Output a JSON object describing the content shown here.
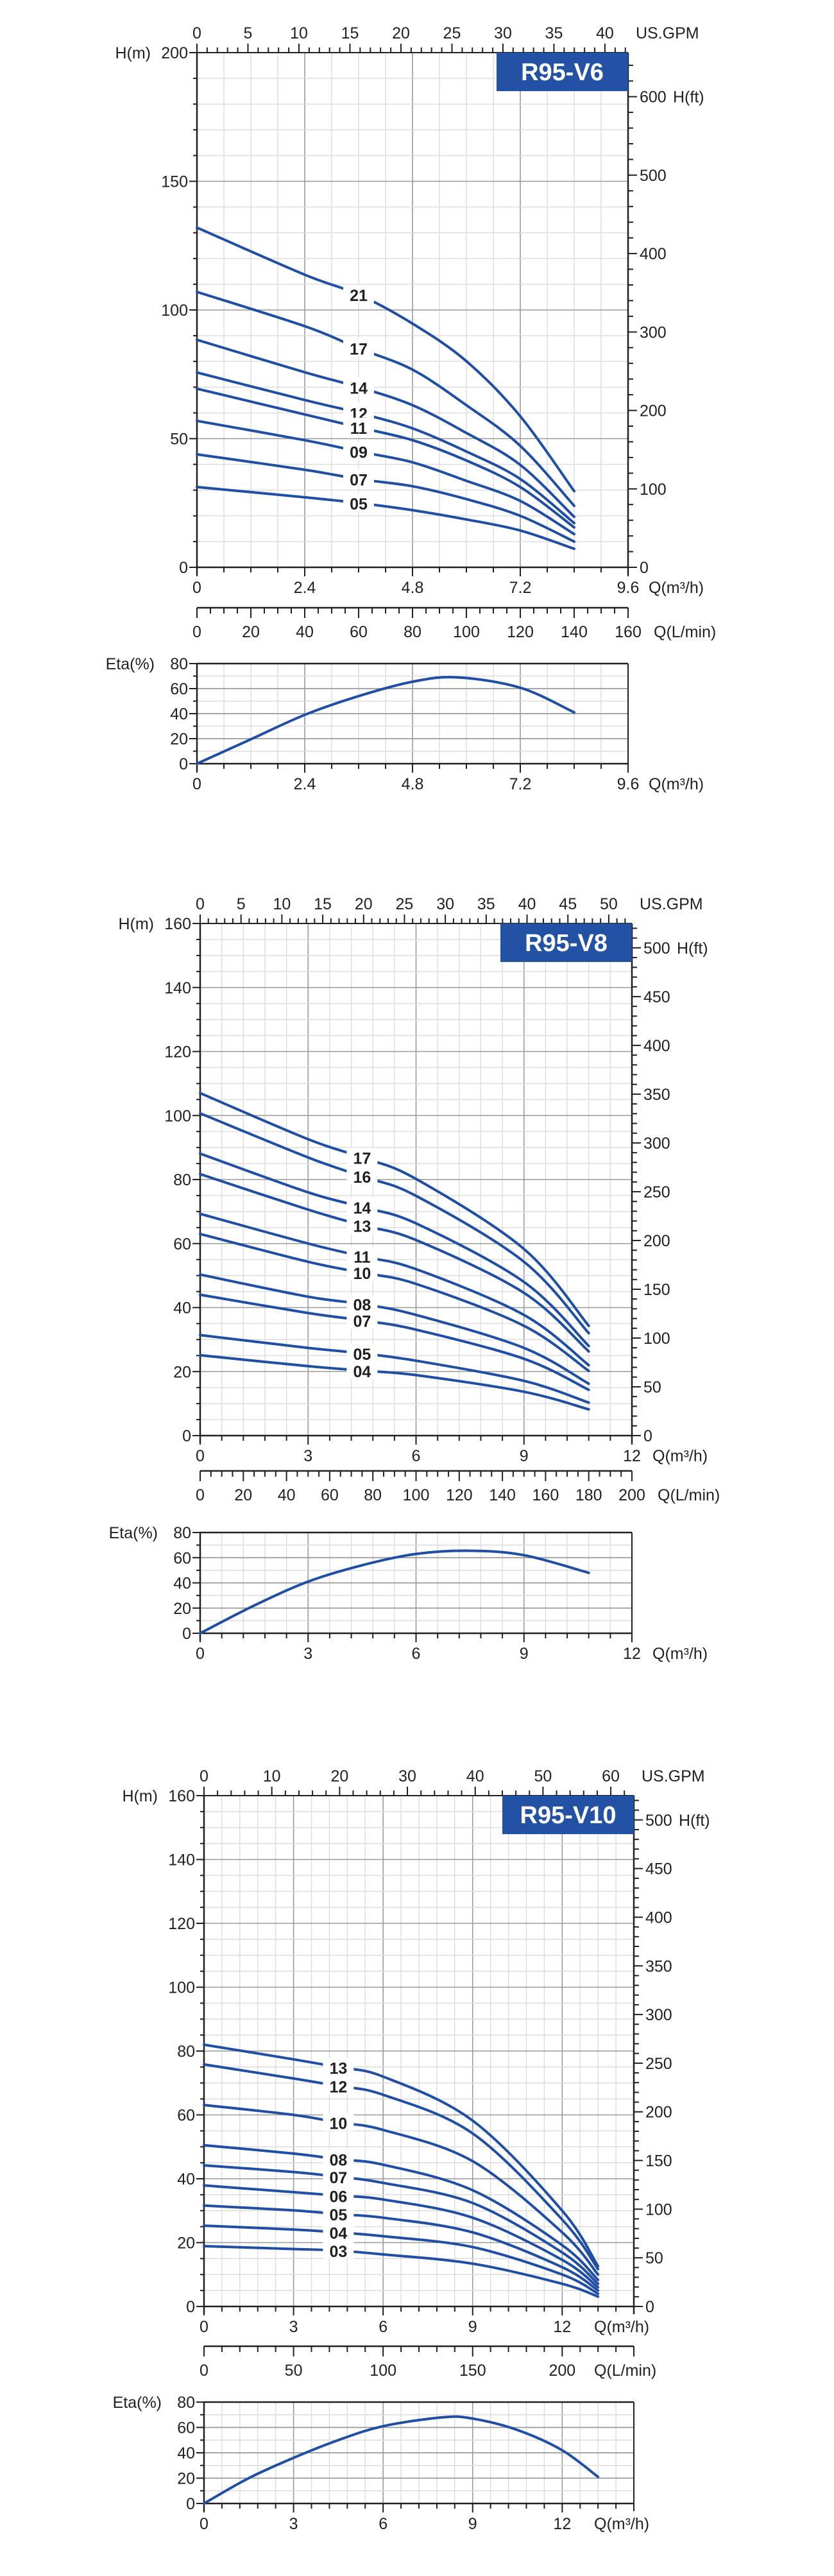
{
  "chart_data": [
    {
      "type": "line",
      "title": "R95-V6",
      "badge_color": "#2352a4",
      "line_color": "#1f4ea3",
      "grid": true,
      "xlabel": "Q(m³/h)",
      "xlim": [
        0,
        9.6
      ],
      "x_ticks": [
        0,
        2.4,
        4.8,
        7.2,
        9.6
      ],
      "ylabel": "H(m)",
      "ylim": [
        0,
        200
      ],
      "y_ticks": [
        0,
        50,
        100,
        150,
        200
      ],
      "top_axis": {
        "label": "US.GPM",
        "ticks": [
          0,
          5,
          10,
          15,
          20,
          25,
          30,
          35,
          40
        ]
      },
      "right_axis": {
        "label": "H(ft)",
        "ticks": [
          0,
          100,
          200,
          300,
          400,
          500,
          600
        ]
      },
      "flow_lpm_axis": {
        "label": "Q(L/min)",
        "ticks": [
          0,
          20,
          40,
          60,
          80,
          100,
          120,
          140,
          160
        ]
      },
      "series": [
        {
          "name": "21",
          "x": [
            0,
            2.4,
            3.6,
            4.8,
            6.0,
            7.2,
            8.4
          ],
          "y": [
            132,
            113.7,
            106,
            94.7,
            80.1,
            58.7,
            29.6
          ]
        },
        {
          "name": "17",
          "x": [
            0,
            2.4,
            3.6,
            4.8,
            6.0,
            7.2,
            8.4
          ],
          "y": [
            107,
            93.7,
            85.1,
            76.8,
            63,
            47.2,
            23.9
          ]
        },
        {
          "name": "14",
          "x": [
            0,
            2.4,
            3.6,
            4.8,
            6.0,
            7.2,
            8.4
          ],
          "y": [
            88.4,
            75.8,
            70,
            63,
            52.2,
            39.8,
            19.6
          ]
        },
        {
          "name": "12",
          "x": [
            0,
            2.4,
            3.6,
            4.8,
            6.0,
            7.2,
            8.4
          ],
          "y": [
            75.7,
            65,
            60,
            54,
            45,
            34.3,
            17.2
          ]
        },
        {
          "name": "11",
          "x": [
            0,
            2.4,
            3.6,
            4.8,
            6.0,
            7.2,
            8.4
          ],
          "y": [
            69.4,
            59.4,
            54.4,
            49.4,
            41.5,
            31.2,
            15.5
          ]
        },
        {
          "name": "09",
          "x": [
            0,
            2.4,
            3.6,
            4.8,
            6.0,
            7.2,
            8.4
          ],
          "y": [
            56.9,
            49.4,
            45,
            40.8,
            33.6,
            25.8,
            12.9
          ]
        },
        {
          "name": "07",
          "x": [
            0,
            2.4,
            3.6,
            4.8,
            6.0,
            7.2,
            8.4
          ],
          "y": [
            43.9,
            37.9,
            34.3,
            31.5,
            26.5,
            20,
            10
          ]
        },
        {
          "name": "05",
          "x": [
            0,
            2.4,
            3.6,
            4.8,
            6.0,
            7.2,
            8.4
          ],
          "y": [
            31.2,
            27.2,
            25,
            22.2,
            18.6,
            14.3,
            7.2
          ]
        }
      ],
      "efficiency": {
        "ylabel": "Eta(%)",
        "ylim": [
          0,
          80
        ],
        "y_ticks": [
          0,
          20,
          40,
          60,
          80
        ],
        "xlabel": "Q(m³/h)",
        "x_ticks": [
          0,
          2.4,
          4.8,
          7.2,
          9.6
        ],
        "x": [
          0,
          1.2,
          2.4,
          3.6,
          4.8,
          5.8,
          7.2,
          8.4
        ],
        "y": [
          0,
          19.5,
          39,
          54,
          65.5,
          69,
          60.7,
          41
        ]
      }
    },
    {
      "type": "line",
      "title": "R95-V8",
      "badge_color": "#2352a4",
      "line_color": "#1f4ea3",
      "grid": true,
      "xlabel": "Q(m³/h)",
      "xlim": [
        0,
        12
      ],
      "x_ticks": [
        0,
        3,
        6,
        9,
        12
      ],
      "ylabel": "H(m)",
      "ylim": [
        0,
        160
      ],
      "y_ticks": [
        0,
        20,
        40,
        60,
        80,
        100,
        120,
        140,
        160
      ],
      "top_axis": {
        "label": "US.GPM",
        "ticks": [
          0,
          5,
          10,
          15,
          20,
          25,
          30,
          35,
          40,
          45,
          50
        ]
      },
      "right_axis": {
        "label": "H(ft)",
        "ticks": [
          0,
          50,
          100,
          150,
          200,
          250,
          300,
          350,
          400,
          450,
          500
        ]
      },
      "flow_lpm_axis": {
        "label": "Q(L/min)",
        "ticks": [
          0,
          20,
          40,
          60,
          80,
          100,
          120,
          140,
          160,
          180,
          200
        ]
      },
      "series": [
        {
          "name": "17",
          "x": [
            0,
            3,
            4.5,
            6,
            9,
            10.8
          ],
          "y": [
            107,
            92.6,
            86.9,
            80.2,
            58.3,
            34.3
          ]
        },
        {
          "name": "16",
          "x": [
            0,
            3,
            4.5,
            6,
            9,
            10.8
          ],
          "y": [
            100.7,
            86.9,
            81,
            74.9,
            54.3,
            32
          ]
        },
        {
          "name": "14",
          "x": [
            0,
            3,
            4.5,
            6,
            9,
            10.8
          ],
          "y": [
            88.1,
            76,
            71.4,
            66.3,
            48,
            28
          ]
        },
        {
          "name": "13",
          "x": [
            0,
            3,
            4.5,
            6,
            9,
            10.8
          ],
          "y": [
            81.7,
            70.6,
            65.7,
            61.1,
            44.6,
            26.3
          ]
        },
        {
          "name": "11",
          "x": [
            0,
            3,
            4.5,
            6,
            9,
            10.8
          ],
          "y": [
            69.3,
            60,
            56,
            52,
            37.7,
            22
          ]
        },
        {
          "name": "10",
          "x": [
            0,
            3,
            4.5,
            6,
            9,
            10.8
          ],
          "y": [
            63,
            54.3,
            50.9,
            47.4,
            34.3,
            20.2
          ]
        },
        {
          "name": "08",
          "x": [
            0,
            3,
            4.5,
            6,
            9,
            10.8
          ],
          "y": [
            50.3,
            43.4,
            41.1,
            37.7,
            27.4,
            16.2
          ]
        },
        {
          "name": "07",
          "x": [
            0,
            3,
            4.5,
            6,
            9,
            10.8
          ],
          "y": [
            44,
            38.3,
            36,
            33.1,
            24,
            14.3
          ]
        },
        {
          "name": "05",
          "x": [
            0,
            3,
            4.5,
            6,
            9,
            10.8
          ],
          "y": [
            31.4,
            27.4,
            25.7,
            23.4,
            17.1,
            10.3
          ]
        },
        {
          "name": "04",
          "x": [
            0,
            3,
            4.5,
            6,
            9,
            10.8
          ],
          "y": [
            25.1,
            21.7,
            20.3,
            18.9,
            13.7,
            8.2
          ]
        }
      ],
      "efficiency": {
        "ylabel": "Eta(%)",
        "ylim": [
          0,
          80
        ],
        "y_ticks": [
          0,
          20,
          40,
          60,
          80
        ],
        "xlabel": "Q(m³/h)",
        "x_ticks": [
          0,
          3,
          6,
          9,
          12
        ],
        "x": [
          0,
          1.5,
          3,
          4.5,
          6,
          7.5,
          9,
          10.8
        ],
        "y": [
          0,
          22,
          41,
          54,
          63,
          65.5,
          62,
          48
        ]
      }
    },
    {
      "type": "line",
      "title": "R95-V10",
      "badge_color": "#2352a4",
      "line_color": "#1f4ea3",
      "grid": true,
      "xlabel": "Q(m³/h)",
      "xlim": [
        0,
        14.4
      ],
      "x_ticks": [
        0,
        3,
        6,
        9,
        12
      ],
      "ylabel": "H(m)",
      "ylim": [
        0,
        160
      ],
      "y_ticks": [
        0,
        20,
        40,
        60,
        80,
        100,
        120,
        140,
        160
      ],
      "top_axis": {
        "label": "US.GPM",
        "ticks": [
          0,
          10,
          20,
          30,
          40,
          50,
          60
        ]
      },
      "right_axis": {
        "label": "H(ft)",
        "ticks": [
          0,
          50,
          100,
          150,
          200,
          250,
          300,
          350,
          400,
          450,
          500
        ]
      },
      "flow_lpm_axis": {
        "label": "Q(L/min)",
        "ticks": [
          0,
          50,
          100,
          150,
          200
        ]
      },
      "series": [
        {
          "name": "13",
          "x": [
            0,
            3,
            4.5,
            6,
            9,
            12,
            13.2
          ],
          "y": [
            82,
            77.4,
            74.9,
            72,
            58.2,
            30,
            12.6
          ]
        },
        {
          "name": "12",
          "x": [
            0,
            3,
            4.5,
            6,
            9,
            12,
            13.2
          ],
          "y": [
            75.8,
            71.4,
            69,
            66.3,
            54.2,
            27.2,
            11.7
          ]
        },
        {
          "name": "10",
          "x": [
            0,
            3,
            4.5,
            6,
            9,
            12,
            13.2
          ],
          "y": [
            63.1,
            60,
            57.6,
            55.3,
            45.5,
            23.2,
            10
          ]
        },
        {
          "name": "08",
          "x": [
            0,
            3,
            4.5,
            6,
            9,
            12,
            13.2
          ],
          "y": [
            50.5,
            47.9,
            46.1,
            44.4,
            36.4,
            19.2,
            8.3
          ]
        },
        {
          "name": "07",
          "x": [
            0,
            3,
            4.5,
            6,
            9,
            12,
            13.2
          ],
          "y": [
            44.2,
            42.1,
            40.6,
            38.7,
            32.4,
            16.9,
            7.1
          ]
        },
        {
          "name": "06",
          "x": [
            0,
            3,
            4.5,
            6,
            9,
            12,
            13.2
          ],
          "y": [
            37.9,
            35.8,
            34.7,
            33.5,
            27.8,
            14.6,
            6
          ]
        },
        {
          "name": "05",
          "x": [
            0,
            3,
            4.5,
            6,
            9,
            12,
            13.2
          ],
          "y": [
            31.6,
            30.1,
            28.9,
            27.8,
            23.2,
            12.3,
            5
          ]
        },
        {
          "name": "04",
          "x": [
            0,
            3,
            4.5,
            6,
            9,
            12,
            13.2
          ],
          "y": [
            25.3,
            24.1,
            23.2,
            22,
            18.6,
            10,
            4
          ]
        },
        {
          "name": "03",
          "x": [
            0,
            3,
            4.5,
            6,
            9,
            12,
            13.2
          ],
          "y": [
            18.9,
            18,
            17.5,
            16.3,
            13.4,
            7.1,
            3.1
          ]
        }
      ],
      "efficiency": {
        "ylabel": "Eta(%)",
        "ylim": [
          0,
          80
        ],
        "y_ticks": [
          0,
          20,
          40,
          60,
          80
        ],
        "xlabel": "Q(m³/h)",
        "x_ticks": [
          0,
          3,
          6,
          9,
          12
        ],
        "x": [
          0,
          1.5,
          3,
          4.5,
          6,
          8,
          9,
          10.5,
          12,
          13.2
        ],
        "y": [
          0,
          20,
          36,
          50,
          61,
          68,
          67,
          58,
          42,
          21
        ]
      }
    }
  ]
}
